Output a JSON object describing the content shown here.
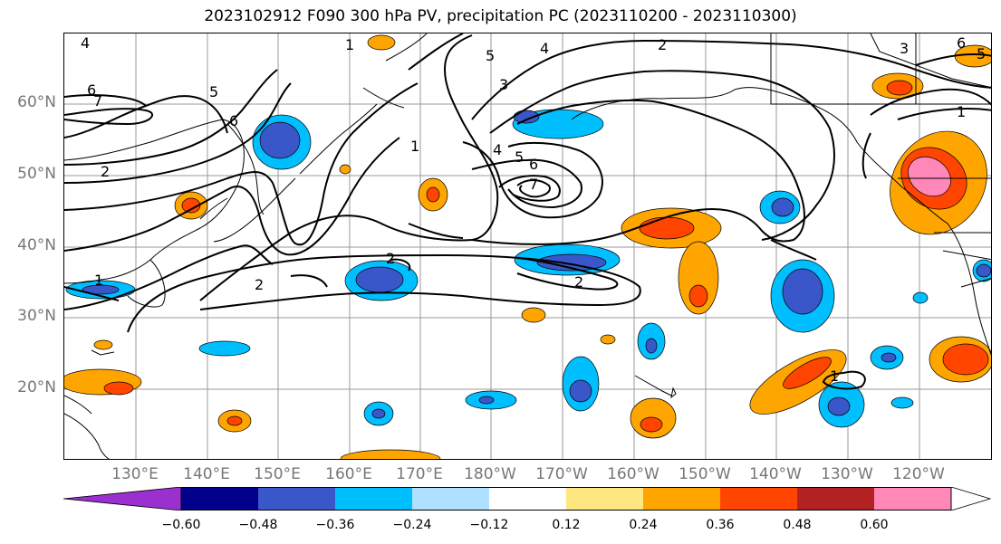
{
  "title": "2023102912 F090 300 hPa PV, precipitation PC (2023110200 - 2023110300)",
  "lat_labels": [
    "60°N",
    "50°N",
    "40°N",
    "30°N",
    "20°N"
  ],
  "lon_labels": [
    "130°E",
    "140°E",
    "150°E",
    "160°E",
    "170°E",
    "180°W",
    "170°W",
    "160°W",
    "150°W",
    "140°W",
    "130°W",
    "120°W"
  ],
  "colorbar": {
    "ticks": [
      "−0.60",
      "−0.48",
      "−0.36",
      "−0.24",
      "−0.12",
      "0.12",
      "0.24",
      "0.36",
      "0.48",
      "0.60"
    ],
    "colors": [
      "#9b30d0",
      "#00008b",
      "#3a57c9",
      "#00bfff",
      "#aee0ff",
      "#ffffff",
      "#ffe680",
      "#ffa500",
      "#ff4500",
      "#b22222",
      "#ff88b8",
      "#ffffff"
    ]
  },
  "contour_labels": [
    "4",
    "6",
    "7",
    "5",
    "6",
    "2",
    "1",
    "1",
    "2",
    "4",
    "5",
    "3",
    "2",
    "3",
    "6",
    "5",
    "1",
    "4",
    "5",
    "6",
    "7",
    "2",
    "2",
    "1",
    "1"
  ]
}
